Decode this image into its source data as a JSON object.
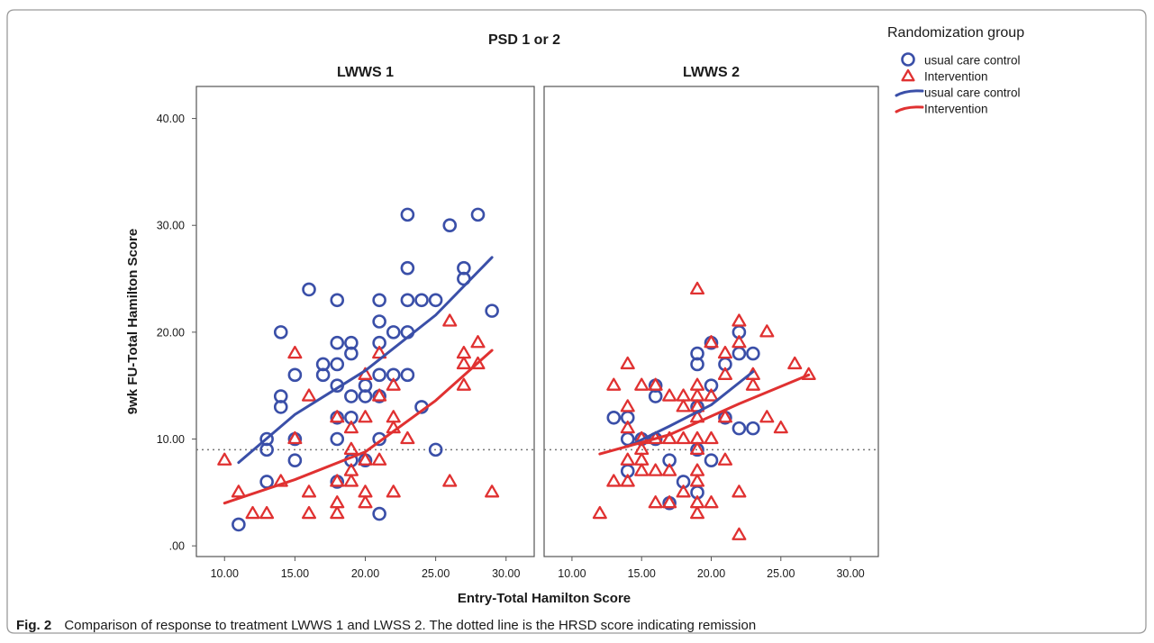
{
  "chart_data": {
    "type": "scatter",
    "title": "PSD 1 or 2",
    "xlabel": "Entry-Total Hamilton Score",
    "ylabel": "9wk FU-Total Hamilton Score",
    "xlim": [
      8,
      32
    ],
    "ylim": [
      -1,
      43
    ],
    "x_ticks": [
      "10.00",
      "15.00",
      "20.00",
      "25.00",
      "30.00"
    ],
    "y_ticks": [
      ".00",
      "10.00",
      "20.00",
      "30.00",
      "40.00"
    ],
    "grid": false,
    "legend_position": "top-right, outside",
    "legend_title": "Randomization group",
    "legend_items": [
      {
        "label": "usual care control",
        "kind": "circle",
        "color": "#3a4fa8"
      },
      {
        "label": "Intervention",
        "kind": "triangle",
        "color": "#e03131"
      },
      {
        "label": "usual care control",
        "kind": "line",
        "color": "#3a4fa8"
      },
      {
        "label": "Intervention",
        "kind": "line",
        "color": "#e03131"
      }
    ],
    "reference_line": {
      "y": 9,
      "style": "dotted"
    },
    "panels": [
      {
        "title": "LWWS 1",
        "series": [
          {
            "name": "usual care control",
            "marker": "circle",
            "color": "#3a4fa8",
            "points": [
              [
                11,
                2
              ],
              [
                13,
                10
              ],
              [
                13,
                9
              ],
              [
                13,
                6
              ],
              [
                14,
                20
              ],
              [
                14,
                14
              ],
              [
                14,
                13
              ],
              [
                15,
                16
              ],
              [
                15,
                10
              ],
              [
                15,
                8
              ],
              [
                16,
                24
              ],
              [
                17,
                17
              ],
              [
                17,
                16
              ],
              [
                18,
                23
              ],
              [
                18,
                19
              ],
              [
                18,
                17
              ],
              [
                18,
                15
              ],
              [
                18,
                12
              ],
              [
                18,
                10
              ],
              [
                18,
                6
              ],
              [
                19,
                19
              ],
              [
                19,
                18
              ],
              [
                19,
                14
              ],
              [
                19,
                12
              ],
              [
                19,
                8
              ],
              [
                20,
                15
              ],
              [
                20,
                14
              ],
              [
                20,
                8
              ],
              [
                21,
                23
              ],
              [
                21,
                21
              ],
              [
                21,
                19
              ],
              [
                21,
                16
              ],
              [
                21,
                14
              ],
              [
                21,
                10
              ],
              [
                21,
                3
              ],
              [
                22,
                20
              ],
              [
                22,
                16
              ],
              [
                23,
                31
              ],
              [
                23,
                26
              ],
              [
                23,
                23
              ],
              [
                23,
                20
              ],
              [
                23,
                16
              ],
              [
                24,
                23
              ],
              [
                24,
                13
              ],
              [
                25,
                23
              ],
              [
                25,
                9
              ],
              [
                26,
                30
              ],
              [
                27,
                26
              ],
              [
                27,
                25
              ],
              [
                28,
                31
              ],
              [
                29,
                22
              ]
            ]
          },
          {
            "name": "Intervention",
            "marker": "triangle",
            "color": "#e03131",
            "points": [
              [
                10,
                8
              ],
              [
                11,
                5
              ],
              [
                12,
                3
              ],
              [
                13,
                3
              ],
              [
                14,
                6
              ],
              [
                15,
                18
              ],
              [
                15,
                10
              ],
              [
                16,
                14
              ],
              [
                16,
                5
              ],
              [
                16,
                3
              ],
              [
                18,
                12
              ],
              [
                18,
                6
              ],
              [
                18,
                4
              ],
              [
                18,
                3
              ],
              [
                19,
                11
              ],
              [
                19,
                9
              ],
              [
                19,
                7
              ],
              [
                19,
                6
              ],
              [
                20,
                16
              ],
              [
                20,
                12
              ],
              [
                20,
                8
              ],
              [
                20,
                5
              ],
              [
                20,
                4
              ],
              [
                21,
                18
              ],
              [
                21,
                14
              ],
              [
                21,
                8
              ],
              [
                22,
                15
              ],
              [
                22,
                12
              ],
              [
                22,
                11
              ],
              [
                22,
                5
              ],
              [
                23,
                10
              ],
              [
                26,
                21
              ],
              [
                26,
                6
              ],
              [
                27,
                18
              ],
              [
                27,
                17
              ],
              [
                27,
                15
              ],
              [
                28,
                19
              ],
              [
                28,
                17
              ],
              [
                29,
                5
              ]
            ]
          }
        ],
        "fit_lines": [
          {
            "name": "usual care control",
            "color": "#3a4fa8",
            "points": [
              [
                11,
                7.8
              ],
              [
                15,
                12.3
              ],
              [
                20,
                16.4
              ],
              [
                25,
                21.6
              ],
              [
                29,
                27
              ]
            ]
          },
          {
            "name": "Intervention",
            "color": "#e03131",
            "points": [
              [
                10,
                4
              ],
              [
                15,
                6.2
              ],
              [
                20,
                8.8
              ],
              [
                25,
                13.6
              ],
              [
                29,
                18.3
              ]
            ]
          }
        ]
      },
      {
        "title": "LWWS 2",
        "series": [
          {
            "name": "usual care control",
            "marker": "circle",
            "color": "#3a4fa8",
            "points": [
              [
                13,
                12
              ],
              [
                14,
                12
              ],
              [
                14,
                10
              ],
              [
                14,
                7
              ],
              [
                15,
                10
              ],
              [
                16,
                15
              ],
              [
                16,
                14
              ],
              [
                16,
                10
              ],
              [
                17,
                8
              ],
              [
                17,
                4
              ],
              [
                18,
                6
              ],
              [
                19,
                18
              ],
              [
                19,
                17
              ],
              [
                19,
                13
              ],
              [
                19,
                9
              ],
              [
                19,
                5
              ],
              [
                20,
                19
              ],
              [
                20,
                15
              ],
              [
                20,
                8
              ],
              [
                21,
                17
              ],
              [
                21,
                12
              ],
              [
                22,
                20
              ],
              [
                22,
                18
              ],
              [
                22,
                11
              ],
              [
                23,
                18
              ],
              [
                23,
                11
              ]
            ]
          },
          {
            "name": "Intervention",
            "marker": "triangle",
            "color": "#e03131",
            "points": [
              [
                12,
                3
              ],
              [
                13,
                15
              ],
              [
                13,
                6
              ],
              [
                14,
                17
              ],
              [
                14,
                13
              ],
              [
                14,
                11
              ],
              [
                14,
                8
              ],
              [
                14,
                6
              ],
              [
                15,
                15
              ],
              [
                15,
                10
              ],
              [
                15,
                9
              ],
              [
                15,
                8
              ],
              [
                15,
                7
              ],
              [
                16,
                15
              ],
              [
                16,
                10
              ],
              [
                16,
                7
              ],
              [
                16,
                4
              ],
              [
                17,
                14
              ],
              [
                17,
                10
              ],
              [
                17,
                7
              ],
              [
                17,
                4
              ],
              [
                18,
                14
              ],
              [
                18,
                13
              ],
              [
                18,
                10
              ],
              [
                18,
                5
              ],
              [
                19,
                24
              ],
              [
                19,
                15
              ],
              [
                19,
                14
              ],
              [
                19,
                13
              ],
              [
                19,
                12
              ],
              [
                19,
                10
              ],
              [
                19,
                9
              ],
              [
                19,
                7
              ],
              [
                19,
                6
              ],
              [
                19,
                4
              ],
              [
                19,
                3
              ],
              [
                20,
                19
              ],
              [
                20,
                14
              ],
              [
                20,
                10
              ],
              [
                20,
                4
              ],
              [
                21,
                18
              ],
              [
                21,
                16
              ],
              [
                21,
                12
              ],
              [
                21,
                8
              ],
              [
                22,
                21
              ],
              [
                22,
                19
              ],
              [
                22,
                5
              ],
              [
                22,
                1
              ],
              [
                23,
                16
              ],
              [
                23,
                15
              ],
              [
                24,
                20
              ],
              [
                24,
                12
              ],
              [
                25,
                11
              ],
              [
                26,
                17
              ],
              [
                27,
                16
              ]
            ]
          }
        ],
        "fit_lines": [
          {
            "name": "usual care control",
            "color": "#3a4fa8",
            "points": [
              [
                14,
                9.3
              ],
              [
                17,
                11.2
              ],
              [
                20,
                13.2
              ],
              [
                23,
                16.3
              ]
            ]
          },
          {
            "name": "Intervention",
            "color": "#e03131",
            "points": [
              [
                12,
                8.6
              ],
              [
                17,
                10.4
              ],
              [
                22,
                13.3
              ],
              [
                27,
                16
              ]
            ]
          }
        ]
      }
    ]
  },
  "caption": {
    "label": "Fig. 2",
    "text": "Comparison of response to treatment LWWS 1 and LWSS 2. The dotted line is the HRSD score indicating remission"
  }
}
